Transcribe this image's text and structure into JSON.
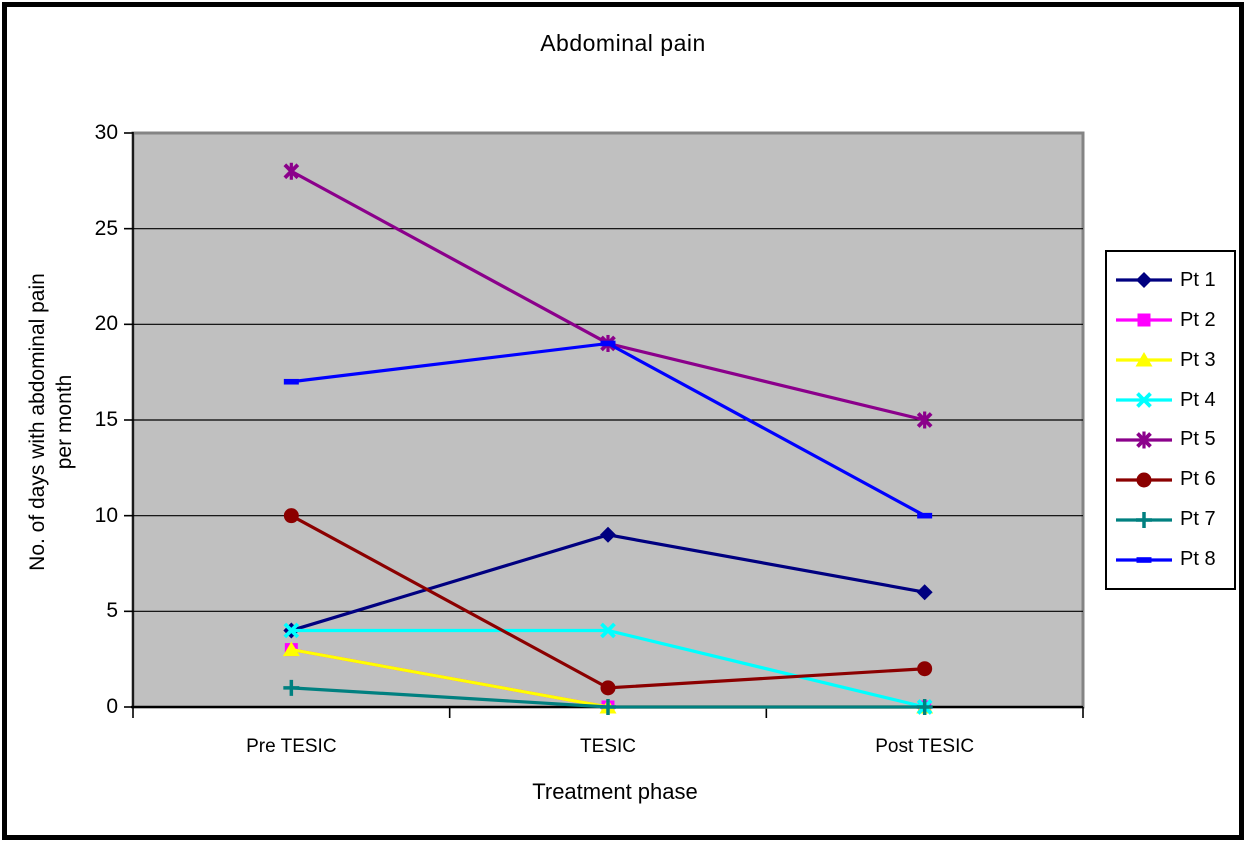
{
  "chart_data": {
    "type": "line",
    "title": "Abdominal pain",
    "xlabel": "Treatment phase",
    "ylabel": "No. of days with abdominal pain per month",
    "ylabel_lines": [
      "No. of days with abdominal pain",
      "per month"
    ],
    "categories": [
      "Pre TESIC",
      "TESIC",
      "Post TESIC"
    ],
    "yticks": [
      0,
      5,
      10,
      15,
      20,
      25,
      30
    ],
    "ylim": [
      0,
      30
    ],
    "grid": true,
    "legend_position": "right",
    "plot_bg_color": "#c0c0c0",
    "plot_border_color": "#848484",
    "gridline_color": "#000000",
    "series": [
      {
        "name": "Pt 1",
        "color": "#000080",
        "marker": "diamond",
        "values": [
          4,
          9,
          6
        ]
      },
      {
        "name": "Pt 2",
        "color": "#ff00ff",
        "marker": "square",
        "values": [
          3,
          0,
          0
        ]
      },
      {
        "name": "Pt 3",
        "color": "#ffff00",
        "marker": "triangle",
        "values": [
          3,
          0,
          0
        ]
      },
      {
        "name": "Pt 4",
        "color": "#00ffff",
        "marker": "x",
        "values": [
          4,
          4,
          0
        ]
      },
      {
        "name": "Pt 5",
        "color": "#8b008b",
        "marker": "asterisk",
        "values": [
          28,
          19,
          15
        ]
      },
      {
        "name": "Pt 6",
        "color": "#8b0000",
        "marker": "circle",
        "values": [
          10,
          1,
          2
        ]
      },
      {
        "name": "Pt 7",
        "color": "#008080",
        "marker": "plus",
        "values": [
          1,
          0,
          0
        ]
      },
      {
        "name": "Pt 8",
        "color": "#0000ff",
        "marker": "dash",
        "values": [
          17,
          19,
          10
        ]
      }
    ]
  }
}
